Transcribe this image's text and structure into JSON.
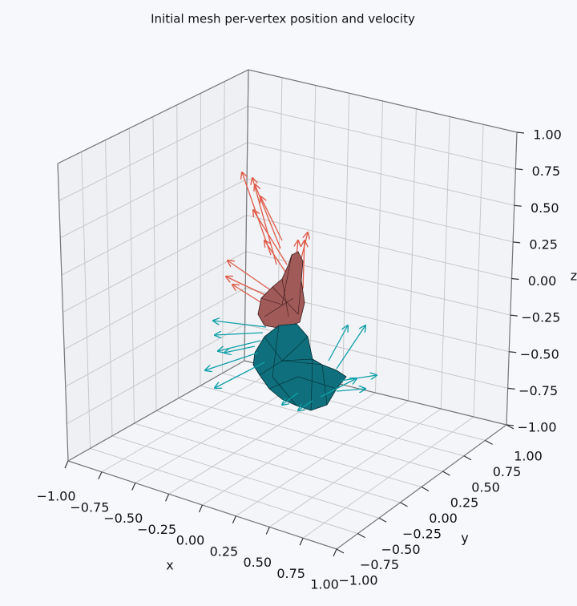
{
  "chart_data": {
    "type": "scatter3d",
    "title": "Initial mesh per-vertex position and velocity",
    "xlabel": "x",
    "ylabel": "y",
    "zlabel": "z",
    "xlim": [
      -1,
      1
    ],
    "ylim": [
      -1,
      1
    ],
    "zlim": [
      -1,
      1
    ],
    "xticks": [
      {
        "value": -1,
        "label": "−1.00"
      },
      {
        "value": -0.75,
        "label": "−0.75"
      },
      {
        "value": -0.5,
        "label": "−0.50"
      },
      {
        "value": -0.25,
        "label": "−0.25"
      },
      {
        "value": 0,
        "label": "0.00"
      },
      {
        "value": 0.25,
        "label": "0.25"
      },
      {
        "value": 0.5,
        "label": "0.50"
      },
      {
        "value": 0.75,
        "label": "0.75"
      },
      {
        "value": 1,
        "label": "1.00"
      }
    ],
    "yticks": [
      {
        "value": -1,
        "label": "−1.00"
      },
      {
        "value": -0.75,
        "label": "−0.75"
      },
      {
        "value": -0.5,
        "label": "−0.50"
      },
      {
        "value": -0.25,
        "label": "−0.25"
      },
      {
        "value": 0,
        "label": "0.00"
      },
      {
        "value": 0.25,
        "label": "0.25"
      },
      {
        "value": 0.5,
        "label": "0.50"
      },
      {
        "value": 0.75,
        "label": "0.75"
      },
      {
        "value": 1,
        "label": "1.00"
      }
    ],
    "zticks": [
      {
        "value": -1,
        "label": "−1.00"
      },
      {
        "value": -0.75,
        "label": "−0.75"
      },
      {
        "value": -0.5,
        "label": "−0.50"
      },
      {
        "value": -0.25,
        "label": "−0.25"
      },
      {
        "value": 0,
        "label": "0.00"
      },
      {
        "value": 0.25,
        "label": "0.25"
      },
      {
        "value": 0.5,
        "label": "0.50"
      },
      {
        "value": 0.75,
        "label": "0.75"
      },
      {
        "value": 1,
        "label": "1.00"
      }
    ],
    "grid": true
  }
}
